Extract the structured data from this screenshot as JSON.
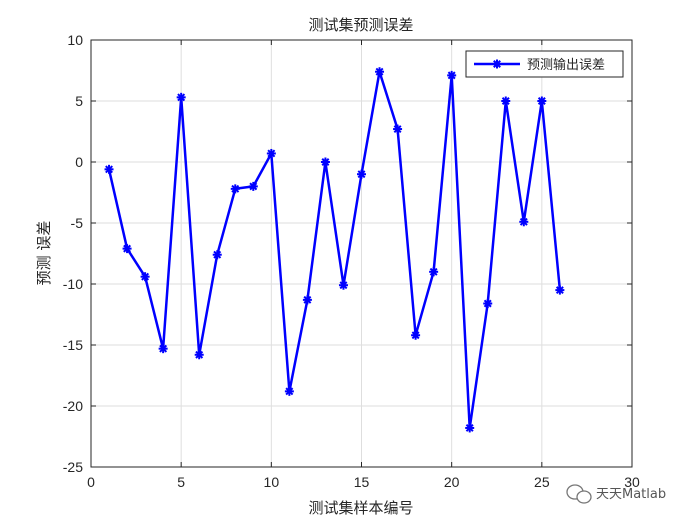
{
  "chart_data": {
    "type": "line",
    "title": "测试集预测误差",
    "xlabel": "测试集样本编号",
    "ylabel": "预测 误差",
    "xlim": [
      0,
      30
    ],
    "ylim": [
      -25,
      10
    ],
    "xticks": [
      0,
      5,
      10,
      15,
      20,
      25,
      30
    ],
    "yticks": [
      -25,
      -20,
      -15,
      -10,
      -5,
      0,
      5,
      10
    ],
    "grid": true,
    "legend_position": "top-right",
    "series": [
      {
        "name": "预测输出误差",
        "color": "#0000ff",
        "marker": "asterisk",
        "x": [
          1,
          2,
          3,
          4,
          5,
          6,
          7,
          8,
          9,
          10,
          11,
          12,
          13,
          14,
          15,
          16,
          17,
          18,
          19,
          20,
          21,
          22,
          23,
          24,
          25,
          26
        ],
        "y": [
          -0.6,
          -7.1,
          -9.4,
          -15.3,
          5.3,
          -15.8,
          -7.6,
          -2.2,
          -2.0,
          0.7,
          -18.8,
          -11.3,
          0.0,
          -10.1,
          -1.0,
          7.4,
          2.7,
          -14.2,
          -9.0,
          7.1,
          -21.8,
          -11.6,
          5.0,
          -4.9,
          5.0,
          -10.5
        ]
      }
    ]
  },
  "watermark": {
    "text": "天天Matlab",
    "icon": "wechat-icon"
  }
}
